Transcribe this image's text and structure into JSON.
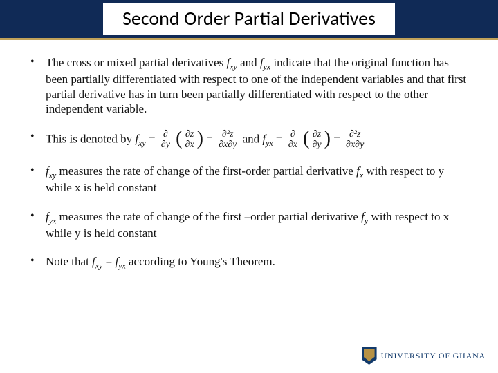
{
  "colors": {
    "band": "#102a56",
    "underline": "#c1a25a",
    "text": "#131313",
    "logo_primary": "#123a6b",
    "logo_accent": "#b79245",
    "white": "#ffffff"
  },
  "typography": {
    "title_fontsize": 28,
    "body_fontsize": 17,
    "body_family": "Times New Roman",
    "title_family": "Calibri"
  },
  "header": {
    "title": "Second Order Partial Derivatives"
  },
  "bullets": {
    "b1_a": "The cross or mixed partial derivatives ",
    "b1_fxy": "f",
    "b1_fxy_sub": "xy",
    "b1_b": " and ",
    "b1_fyx": "f",
    "b1_fyx_sub": "yx",
    "b1_c": "  indicate  that the original function has been partially differentiated with respect to one of the independent variables  and that first partial derivative has in turn been partially differentiated with respect to the other  independent variable.",
    "b2_a": "This is denoted by ",
    "b2_mid": "    and ",
    "b3_a": " measures the rate of change of the first-order partial derivative ",
    "b3_b": " with respect to y while x is held constant",
    "b4_a": " measures the rate of change of the first –order partial derivative ",
    "b4_b": " with respect to x while y is held constant",
    "b5_a": "Note that ",
    "b5_b": " = ",
    "b5_c": " according to Young's Theorem."
  },
  "math": {
    "f": "f",
    "xy": "xy",
    "yx": "yx",
    "x": "x",
    "y": "y",
    "eq": "=",
    "d": "∂",
    "dz": "∂z",
    "dx": "∂x",
    "dy": "∂y",
    "d2z": "∂²z",
    "dxdy": "∂x∂y"
  },
  "footer": {
    "university": "UNIVERSITY OF GHANA"
  }
}
